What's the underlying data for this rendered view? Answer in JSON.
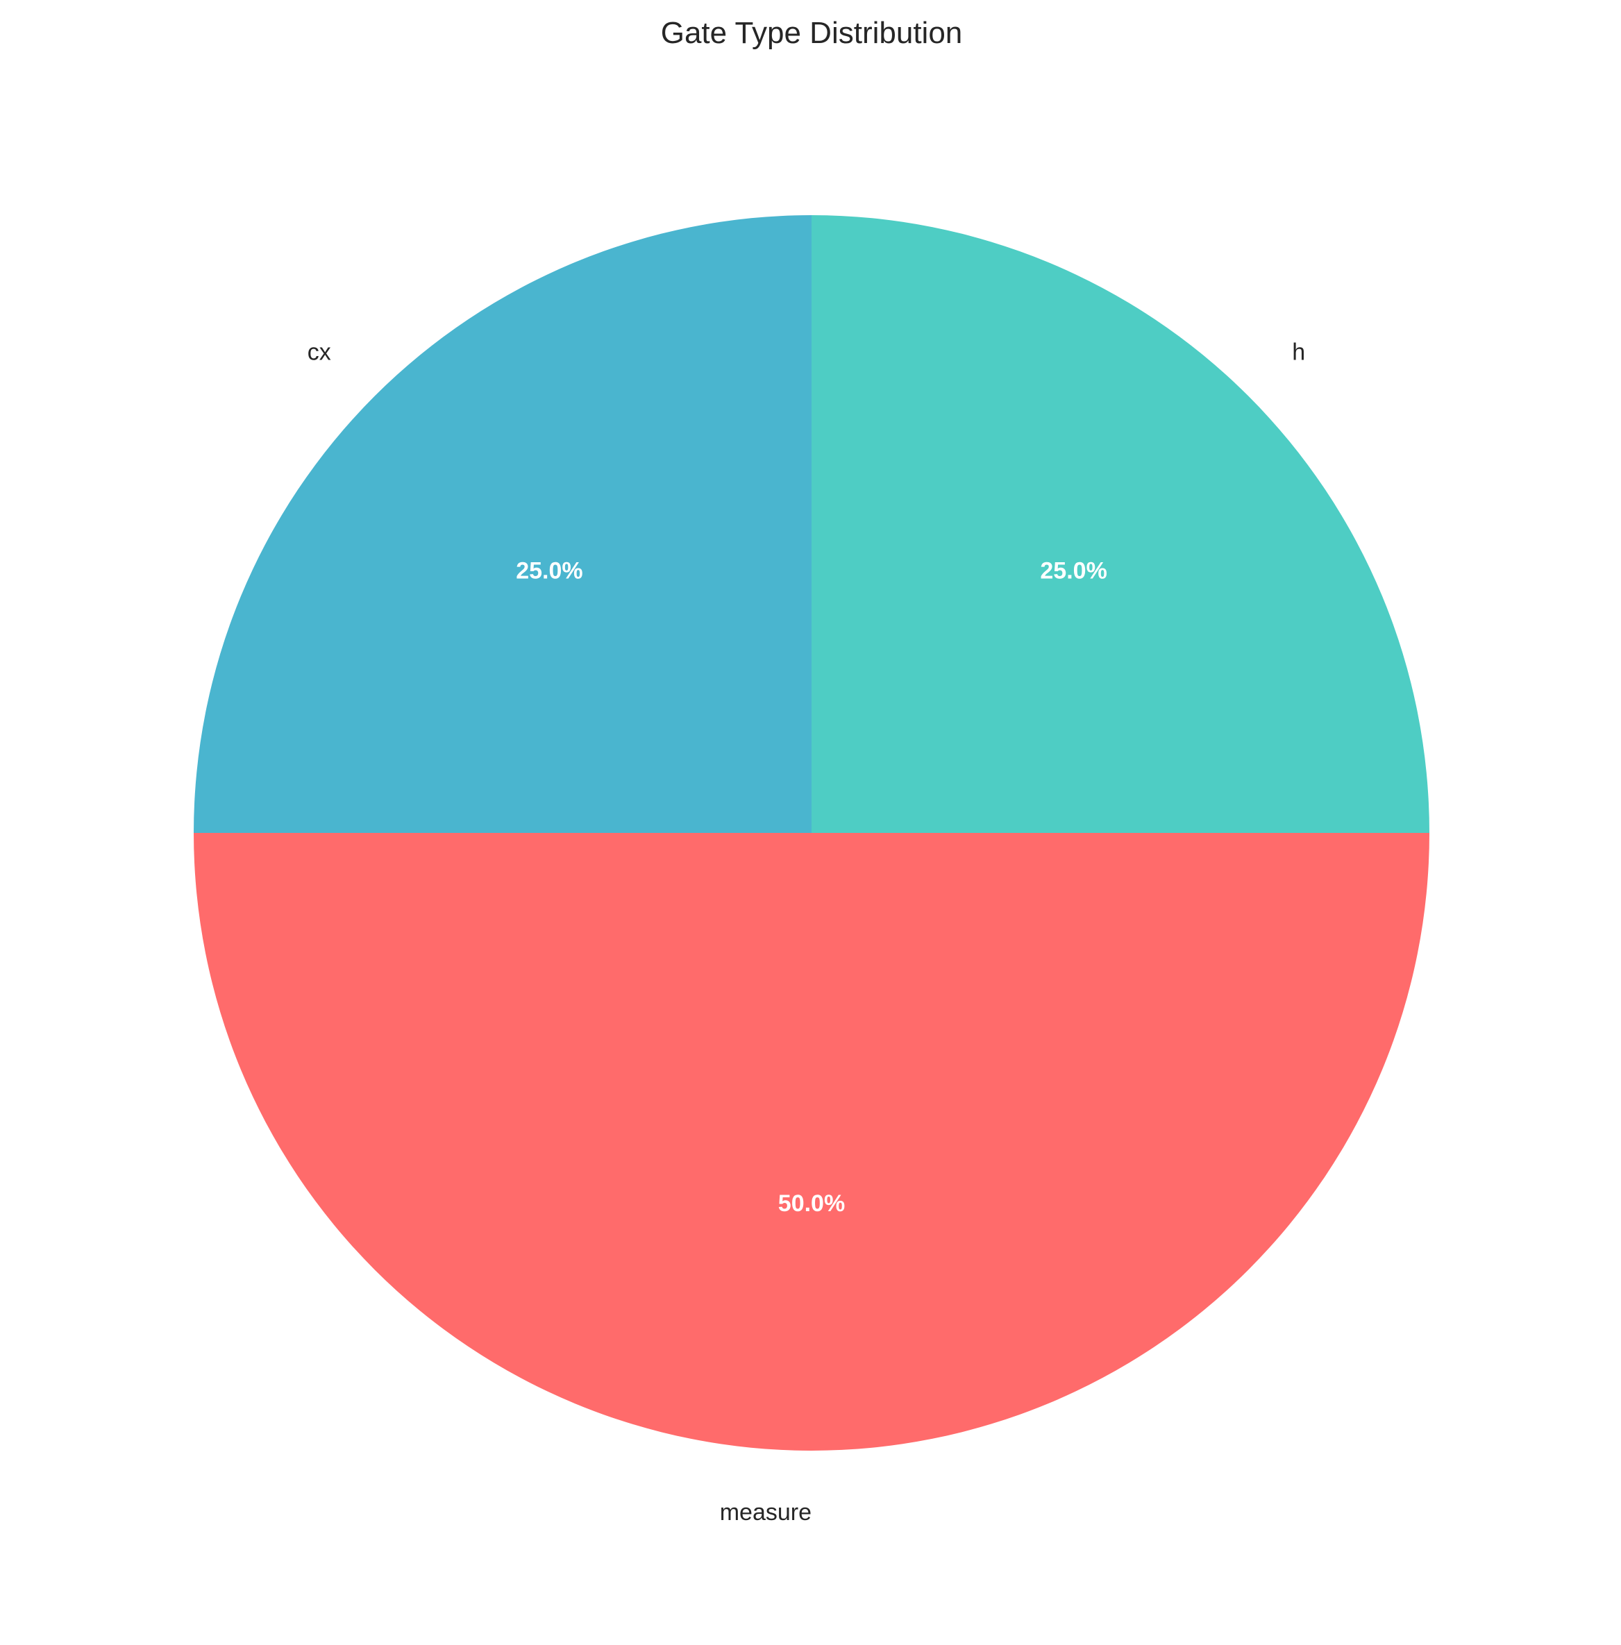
{
  "chart_data": {
    "type": "pie",
    "title": "Gate Type Distribution",
    "slices": [
      {
        "label": "cx",
        "value": 25.0,
        "pct_label": "25.0%",
        "color": "#4AB5CF"
      },
      {
        "label": "measure",
        "value": 50.0,
        "pct_label": "50.0%",
        "color": "#FF6B6B"
      },
      {
        "label": "h",
        "value": 25.0,
        "pct_label": "25.0%",
        "color": "#4ECDC4"
      }
    ],
    "start_angle_deg": 90,
    "direction": "counterclockwise",
    "pct_text_color": "#FFFFFF",
    "label_text_color": "#262626",
    "legend": "none",
    "grid": false
  }
}
